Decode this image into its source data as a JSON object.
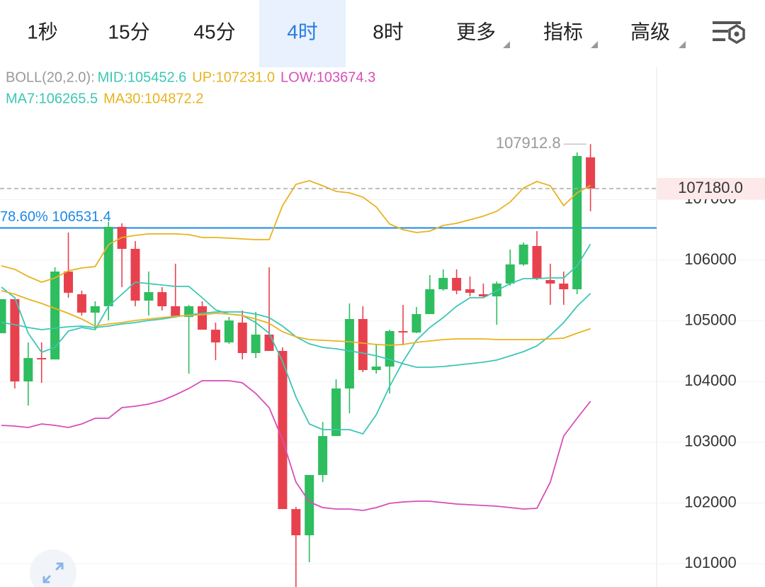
{
  "tabs": {
    "items": [
      "1秒",
      "15分",
      "45分",
      "4时",
      "8时",
      "更多",
      "指标",
      "高级"
    ],
    "active": 3
  },
  "chart_data": {
    "type": "candlestick",
    "indicator_label": "BOLL(20,2.0):",
    "up_color": "#2ebd5f",
    "down_color": "#e8414e",
    "open": [
      104797,
      105358,
      104003,
      104388,
      104365,
      105813,
      105439,
      105136,
      105241,
      106549,
      106187,
      105334,
      105474,
      105241,
      105066,
      105241,
      104855,
      104645,
      104972,
      104470,
      104774,
      104505,
      101900,
      101468,
      102461,
      103103,
      103886,
      105031,
      104190,
      104248,
      104832,
      104809,
      105112,
      105521,
      105708,
      105521,
      105439,
      105404,
      105615,
      105930,
      106234,
      105673,
      105615,
      105521,
      107694
    ],
    "high": [
      105358,
      105358,
      104645,
      104645,
      105883,
      106456,
      105498,
      105323,
      106631,
      106607,
      106315,
      105813,
      105556,
      105942,
      105264,
      105323,
      104972,
      105066,
      105171,
      105147,
      105883,
      104563,
      101935,
      102461,
      103337,
      104038,
      105288,
      105241,
      104622,
      104855,
      105264,
      105229,
      105755,
      105848,
      105848,
      105731,
      105615,
      105650,
      106175,
      106292,
      106479,
      105942,
      105813,
      107775,
      107912.8
    ],
    "low": [
      104797,
      103886,
      103606,
      103979,
      104365,
      105381,
      105089,
      104855,
      105007,
      105556,
      105241,
      105089,
      105171,
      105066,
      104131,
      104855,
      104353,
      104622,
      104365,
      104388,
      104505,
      101900,
      100616,
      101024,
      102344,
      103103,
      103477,
      104155,
      104131,
      103804,
      104598,
      104797,
      105112,
      105498,
      105439,
      105404,
      105381,
      104937,
      105580,
      105907,
      105673,
      105264,
      105264,
      105439,
      106806
    ],
    "close": [
      105358,
      104003,
      104388,
      104365,
      105813,
      105463,
      105136,
      105241,
      106549,
      106187,
      105334,
      105474,
      105241,
      105066,
      105241,
      104855,
      104645,
      105007,
      104470,
      104774,
      104505,
      101900,
      101468,
      102461,
      103103,
      103886,
      105031,
      104190,
      104248,
      104832,
      104809,
      105112,
      105521,
      105708,
      105498,
      105463,
      105404,
      105615,
      105930,
      106257,
      105696,
      105615,
      105521,
      107717,
      107180
    ],
    "last_price_label": "107180.0",
    "series": [
      {
        "name": "MID:105452.6",
        "color": "#3cc7b4",
        "values": [
          104973,
          104938,
          104891,
          104856,
          104879,
          104903,
          104914,
          104891,
          104914,
          104949,
          104973,
          105008,
          105031,
          105066,
          105101,
          105124,
          105148,
          105148,
          105148,
          105113,
          105054,
          104914,
          104739,
          104622,
          104564,
          104540,
          104505,
          104470,
          104424,
          104365,
          104295,
          104237,
          104237,
          104248,
          104272,
          104295,
          104319,
          104354,
          104424,
          104494,
          104587,
          104762,
          104973,
          105241,
          105452.6
        ]
      },
      {
        "name": "UP:107231.0",
        "color": "#e8b321",
        "values": [
          105907,
          105849,
          105732,
          105638,
          105708,
          105825,
          105872,
          105895,
          106257,
          106374,
          106409,
          106433,
          106433,
          106433,
          106421,
          106374,
          106374,
          106363,
          106351,
          106339,
          106339,
          106900,
          107250,
          107309,
          107227,
          107133,
          107110,
          107040,
          106876,
          106596,
          106503,
          106456,
          106479,
          106573,
          106608,
          106666,
          106725,
          106806,
          106958,
          107192,
          107297,
          107227,
          106900,
          107110,
          107231.0
        ]
      },
      {
        "name": "LOW:103674.3",
        "color": "#d64fb8",
        "values": [
          103279,
          103267,
          103244,
          103302,
          103279,
          103244,
          103302,
          103396,
          103396,
          103571,
          103594,
          103629,
          103688,
          103781,
          103886,
          104015,
          104015,
          104015,
          103980,
          103805,
          103571,
          103045,
          102345,
          102018,
          101924,
          101901,
          101901,
          101877,
          101924,
          101994,
          102018,
          102029,
          102029,
          102006,
          101983,
          101971,
          101959,
          101947,
          101924,
          101901,
          101912,
          102345,
          103104,
          103396,
          103674.3
        ]
      },
      {
        "name": "MA7:106265.5",
        "color": "#3cc7b4",
        "values": [
          105557,
          105381,
          104797,
          104482,
          104564,
          104832,
          104891,
          104856,
          105241,
          105440,
          105638,
          105615,
          105592,
          105568,
          105568,
          105381,
          105183,
          105113,
          105089,
          104973,
          104797,
          104330,
          103746,
          103302,
          103209,
          103209,
          103209,
          103139,
          103454,
          103921,
          104330,
          104681,
          104891,
          105054,
          105241,
          105381,
          105381,
          105498,
          105615,
          105697,
          105697,
          105708,
          105708,
          105907,
          106265.5
        ]
      },
      {
        "name": "MA30:104872.2",
        "color": "#e8b321",
        "values": [
          105498,
          105440,
          105358,
          105288,
          105206,
          105124,
          105031,
          104914,
          104949,
          104973,
          105008,
          105031,
          105054,
          105078,
          105089,
          105101,
          105124,
          105113,
          105089,
          105031,
          104961,
          104821,
          104739,
          104692,
          104681,
          104669,
          104657,
          104634,
          104611,
          104599,
          104611,
          104646,
          104669,
          104692,
          104704,
          104704,
          104704,
          104692,
          104692,
          104692,
          104692,
          104704,
          104716,
          104797,
          104872.2
        ]
      }
    ],
    "fib_line": {
      "value": 106531.4,
      "label": "78.60% 106531.4",
      "color": "#1e88e5"
    },
    "ylim": [
      100616,
      109177
    ],
    "yticks": [
      101000,
      102000,
      103000,
      104000,
      105000,
      106000,
      107000
    ],
    "grid": true
  }
}
